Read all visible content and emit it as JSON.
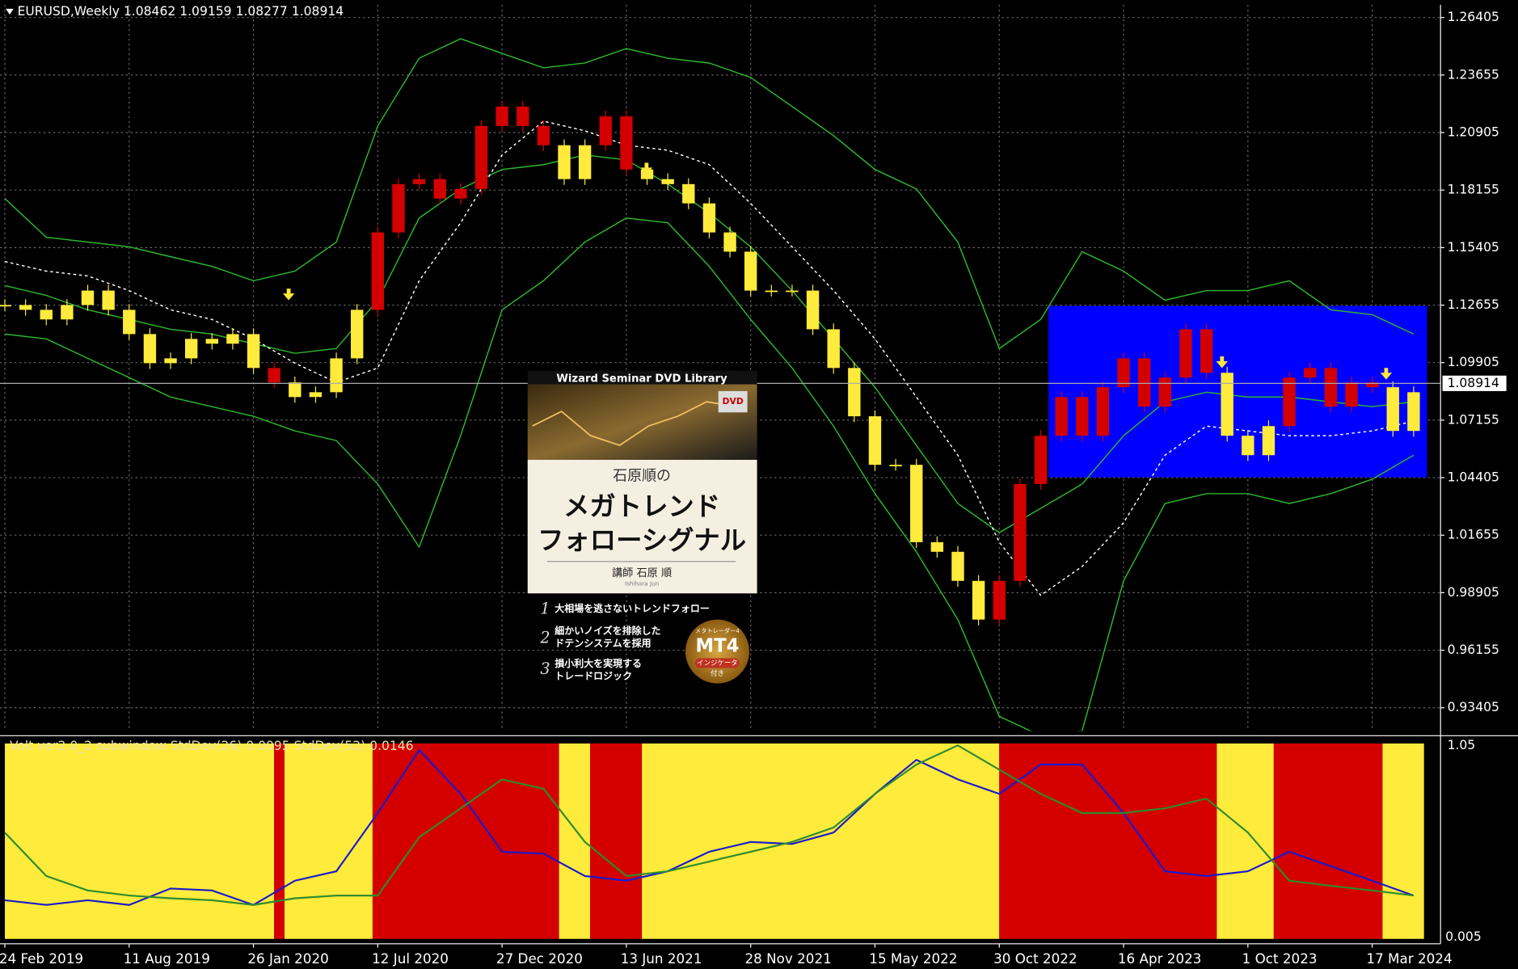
{
  "chart_data": [
    {
      "type": "candlestick",
      "title": "EURUSD,Weekly  1.08462 1.09159 1.08277 1.08914",
      "x": [
        0,
        4,
        8,
        12,
        16,
        20,
        24,
        28,
        32,
        36,
        40,
        44,
        48,
        52,
        56,
        60,
        64,
        68,
        72,
        76,
        80,
        84,
        88,
        92,
        96,
        100,
        104,
        108,
        112,
        116,
        120,
        124,
        128,
        132,
        136,
        140,
        144,
        148,
        152,
        156,
        160,
        164,
        168,
        172,
        176,
        180,
        184,
        188,
        192,
        196,
        200,
        204,
        208,
        212,
        216,
        220,
        224,
        228,
        232,
        236,
        240,
        244,
        248,
        252,
        256,
        260,
        264,
        268,
        272
      ],
      "close": [
        1.1266,
        1.1243,
        1.1197,
        1.1266,
        1.1335,
        1.1243,
        1.1127,
        1.0988,
        1.1011,
        1.1104,
        1.1081,
        1.1127,
        1.0965,
        1.0896,
        1.0826,
        1.0849,
        1.1011,
        1.1243,
        1.1613,
        1.1844,
        1.1868,
        1.1775,
        1.1821,
        1.2122,
        1.2215,
        1.2122,
        1.203,
        1.1868,
        1.203,
        1.2168,
        1.1914,
        1.1868,
        1.1844,
        1.1752,
        1.1613,
        1.1521,
        1.1335,
        1.1335,
        1.1335,
        1.115,
        1.0965,
        1.0734,
        1.0502,
        1.0502,
        1.0132,
        1.0086,
        0.9947,
        0.9762,
        0.9947,
        1.041,
        1.0641,
        1.0826,
        1.0641,
        1.0873,
        1.1011,
        1.078,
        1.0919,
        1.115,
        1.0942,
        1.0641,
        1.0548,
        1.0687,
        1.0919,
        1.0965,
        1.078,
        1.0896,
        1.0873,
        1.0664,
        1.0849
      ],
      "bands": {
        "x": [
          0,
          8,
          16,
          24,
          32,
          40,
          48,
          56,
          64,
          72,
          80,
          88,
          96,
          104,
          112,
          120,
          128,
          136,
          144,
          152,
          160,
          168,
          176,
          184,
          192,
          200,
          208,
          216,
          224,
          232,
          240,
          248,
          256,
          264,
          272
        ],
        "upper": {
          "color": "#2db82d",
          "values": [
            1.1775,
            1.159,
            1.1567,
            1.1544,
            1.1497,
            1.1451,
            1.1382,
            1.1428,
            1.1567,
            1.2122,
            1.2446,
            1.2539,
            1.2469,
            1.24,
            1.2423,
            1.2492,
            1.2446,
            1.2423,
            1.2354,
            1.2215,
            1.2076,
            1.1914,
            1.1821,
            1.1567,
            1.1058,
            1.1197,
            1.1521,
            1.1428,
            1.1289,
            1.1335,
            1.1335,
            1.1382,
            1.1243,
            1.122,
            1.1127
          ]
        },
        "middle": {
          "color": "#2db82d",
          "values": [
            1.1359,
            1.1312,
            1.1243,
            1.1197,
            1.115,
            1.1127,
            1.1081,
            1.1035,
            1.1058,
            1.1289,
            1.1682,
            1.1821,
            1.1914,
            1.1937,
            1.1983,
            1.196,
            1.1844,
            1.1706,
            1.1544,
            1.1335,
            1.1104,
            1.0873,
            1.0595,
            1.0317,
            1.0178,
            1.0294,
            1.041,
            1.0641,
            1.0803,
            1.0849,
            1.0826,
            1.0826,
            1.0803,
            1.078,
            1.0803
          ]
        },
        "lower": {
          "color": "#2db82d",
          "values": [
            1.1127,
            1.1104,
            1.1011,
            1.0919,
            1.0826,
            1.078,
            1.0734,
            1.0664,
            1.0618,
            1.041,
            1.0109,
            1.0641,
            1.1243,
            1.1382,
            1.1567,
            1.1682,
            1.1659,
            1.1451,
            1.1197,
            1.0965,
            1.0687,
            1.0364,
            1.0086,
            0.9762,
            0.9299,
            0.9207,
            0.923,
            0.9947,
            1.0317,
            1.0364,
            1.0364,
            1.0317,
            1.0364,
            1.0433,
            1.0548
          ]
        },
        "dashed": {
          "color": "#ffffff",
          "values": [
            1.1474,
            1.1428,
            1.1405,
            1.1335,
            1.1243,
            1.1197,
            1.1104,
            1.0988,
            1.0896,
            1.0965,
            1.1382,
            1.1659,
            1.1983,
            1.2145,
            1.2099,
            1.203,
            1.2006,
            1.1937,
            1.1752,
            1.1544,
            1.1335,
            1.1104,
            1.0826,
            1.0548,
            1.0132,
            0.9878,
            1.0016,
            1.0225,
            1.0548,
            1.0687,
            1.0664,
            1.0641,
            1.0641,
            1.0664,
            1.0711
          ]
        }
      },
      "highlight_box": {
        "x": [
          201.5,
          274.6
        ],
        "y": [
          1.1262,
          1.0442
        ],
        "color": "#0000ff"
      },
      "signals": {
        "color": "#ffe83a",
        "points": [
          {
            "x": 54.8,
            "y": 1.1298
          },
          {
            "x": 107.9,
            "y": 1.1983
          },
          {
            "x": 123.9,
            "y": 1.19
          },
          {
            "x": 235,
            "y": 1.0974
          },
          {
            "x": 266.7,
            "y": 1.0919
          }
        ]
      },
      "current_price": 1.08914,
      "xlim": [
        -0.935,
        277.2
      ],
      "ylim": [
        0.923,
        1.2701
      ],
      "yticks": [
        1.26405,
        1.23655,
        1.20905,
        1.18155,
        1.15405,
        1.12655,
        1.09905,
        1.07155,
        1.04405,
        1.01655,
        0.98905,
        0.96155,
        0.93405
      ],
      "xticks": [
        {
          "value": 0,
          "label": "24 Feb 2019"
        },
        {
          "value": 24,
          "label": "11 Aug 2019"
        },
        {
          "value": 48,
          "label": "26 Jan 2020"
        },
        {
          "value": 72,
          "label": "12 Jul 2020"
        },
        {
          "value": 96,
          "label": "27 Dec 2020"
        },
        {
          "value": 120,
          "label": "13 Jun 2021"
        },
        {
          "value": 144,
          "label": "28 Nov 2021"
        },
        {
          "value": 168,
          "label": "15 May 2022"
        },
        {
          "value": 192,
          "label": "30 Oct 2022"
        },
        {
          "value": 216,
          "label": "16 Apr 2023"
        },
        {
          "value": 240,
          "label": "1 Oct 2023"
        },
        {
          "value": 264,
          "label": "17 Mar 2024"
        }
      ],
      "grid": true
    },
    {
      "type": "indicator",
      "title": "Volt ver2.0_2 subwindow  StdDev(26) 0.0095  StdDev(52) 0.0146",
      "scale_top_label": "1.05",
      "scale_bottom_label": "0.005",
      "blocks": [
        {
          "x": [
            0,
            52
          ],
          "color": "#ffeb3b"
        },
        {
          "x": [
            52,
            54
          ],
          "color": "#d40000"
        },
        {
          "x": [
            54,
            71
          ],
          "color": "#ffeb3b"
        },
        {
          "x": [
            71,
            107
          ],
          "color": "#d40000"
        },
        {
          "x": [
            107,
            113
          ],
          "color": "#ffeb3b"
        },
        {
          "x": [
            113,
            123
          ],
          "color": "#d40000"
        },
        {
          "x": [
            123,
            192
          ],
          "color": "#ffeb3b"
        },
        {
          "x": [
            192,
            234
          ],
          "color": "#d40000"
        },
        {
          "x": [
            234,
            245
          ],
          "color": "#ffeb3b"
        },
        {
          "x": [
            245,
            266
          ],
          "color": "#d40000"
        },
        {
          "x": [
            266,
            274
          ],
          "color": "#ffeb3b"
        }
      ],
      "x": [
        0,
        8,
        16,
        24,
        32,
        40,
        48,
        56,
        64,
        72,
        80,
        88,
        96,
        104,
        112,
        120,
        128,
        136,
        144,
        152,
        160,
        168,
        176,
        184,
        192,
        200,
        208,
        216,
        224,
        232,
        240,
        248,
        256,
        264,
        272
      ],
      "series": [
        {
          "color": "#1a1acc",
          "values": [
            0.0099,
            0.0087,
            0.0099,
            0.0087,
            0.0129,
            0.0124,
            0.0087,
            0.0149,
            0.0173,
            0.0322,
            0.0483,
            0.0371,
            0.0223,
            0.0218,
            0.0161,
            0.0149,
            0.0173,
            0.0223,
            0.0248,
            0.0243,
            0.0272,
            0.0371,
            0.0458,
            0.0408,
            0.0371,
            0.0446,
            0.0446,
            0.0322,
            0.0173,
            0.0161,
            0.0173,
            0.0223,
            0.0186,
            0.0149,
            0.0111
          ]
        },
        {
          "color": "#2e8b2e",
          "values": [
            0.0272,
            0.0161,
            0.0124,
            0.0111,
            0.0104,
            0.0099,
            0.0087,
            0.0104,
            0.0111,
            0.0111,
            0.026,
            0.0334,
            0.0408,
            0.0384,
            0.0248,
            0.0161,
            0.0173,
            0.0198,
            0.0223,
            0.0248,
            0.0285,
            0.0371,
            0.0446,
            0.0495,
            0.0433,
            0.0371,
            0.0322,
            0.0322,
            0.0334,
            0.0359,
            0.0272,
            0.0149,
            0.0136,
            0.0124,
            0.0111
          ]
        }
      ],
      "xlim": [
        -0.935,
        277.2
      ],
      "ylim": [
        0,
        0.05
      ]
    }
  ],
  "overlay": {
    "series_label": "Wizard Seminar DVD Library",
    "dvd": "DVD",
    "author_line": "石原順の",
    "title_lines": [
      "メガトレンド",
      "フォローシグナル"
    ],
    "lecturer": "講師 石原 順",
    "lecturer_roman": "Ishihara Jun",
    "points": [
      {
        "number": "1",
        "lines": [
          "大相場を逃さないトレンドフォロー"
        ]
      },
      {
        "number": "2",
        "lines": [
          "細かいノイズを排除した",
          "ドテンシステムを採用"
        ]
      },
      {
        "number": "3",
        "lines": [
          "損小利大を実現する",
          "トレードロジック"
        ]
      }
    ],
    "badge": {
      "top": "メタトレーダー4",
      "main": "MT4",
      "bottom": "インジケータ",
      "bottom2": "付き"
    }
  }
}
